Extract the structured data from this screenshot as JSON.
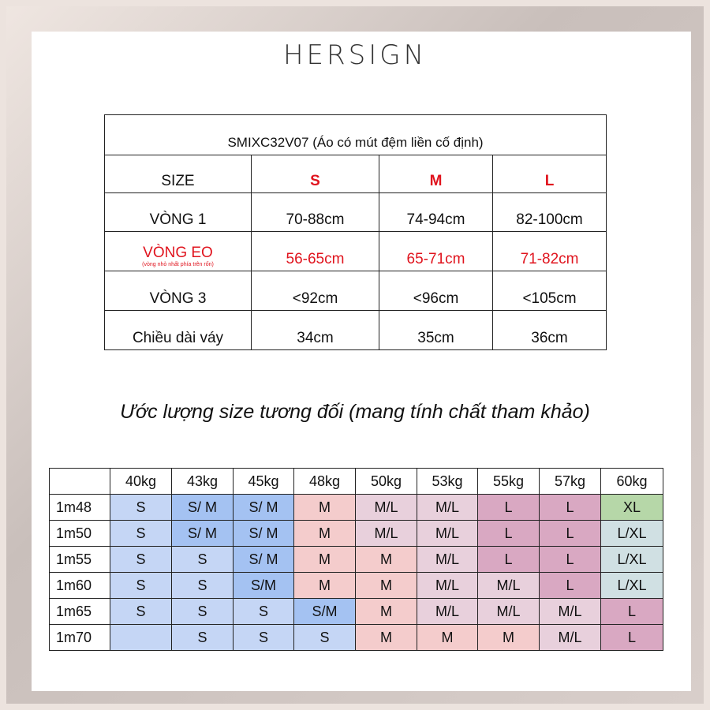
{
  "brand": "HERSIGN",
  "size_table": {
    "title": "SMIXC32V07 (Áo có mút đệm liền cố định)",
    "header": [
      "SIZE",
      "S",
      "M",
      "L"
    ],
    "rows": [
      {
        "label": "VÒNG 1",
        "values": [
          "70-88cm",
          "74-94cm",
          "82-100cm"
        ]
      },
      {
        "label": "VÒNG EO",
        "note": "(vòng nhỏ nhất phía trên rốn)",
        "values": [
          "56-65cm",
          "65-71cm",
          "71-82cm"
        ]
      },
      {
        "label": "VÒNG 3",
        "values": [
          "<92cm",
          "<96cm",
          "<105cm"
        ]
      },
      {
        "label": "Chiều dài váy",
        "values": [
          "34cm",
          "35cm",
          "36cm"
        ]
      }
    ]
  },
  "estimate_title": "Ước lượng size tương đối (mang tính chất tham khảo)",
  "estimate_table": {
    "weights": [
      "40kg",
      "43kg",
      "45kg",
      "48kg",
      "50kg",
      "53kg",
      "55kg",
      "57kg",
      "60kg"
    ],
    "rows": [
      {
        "height": "1m48",
        "cells": [
          "S",
          "S/ M",
          "S/ M",
          "M",
          "M/L",
          "M/L",
          "L",
          "L",
          "XL"
        ]
      },
      {
        "height": "1m50",
        "cells": [
          "S",
          "S/ M",
          "S/ M",
          "M",
          "M/L",
          "M/L",
          "L",
          "L",
          "L/XL"
        ]
      },
      {
        "height": "1m55",
        "cells": [
          "S",
          "S",
          "S/ M",
          "M",
          "M",
          "M/L",
          "L",
          "L",
          "L/XL"
        ]
      },
      {
        "height": "1m60",
        "cells": [
          "S",
          "S",
          "S/M",
          "M",
          "M",
          "M/L",
          "M/L",
          "L",
          "L/XL"
        ]
      },
      {
        "height": "1m65",
        "cells": [
          "S",
          "S",
          "S",
          "S/M",
          "M",
          "M/L",
          "M/L",
          "M/L",
          "L"
        ]
      },
      {
        "height": "1m70",
        "cells": [
          "",
          "S",
          "S",
          "S",
          "M",
          "M",
          "M",
          "M/L",
          "L"
        ]
      }
    ]
  },
  "colors": {
    "accent_red": "#e0141e",
    "blue_light": "#c5d6f5",
    "blue": "#a4c2f2",
    "peach": "#f4cccc",
    "pink": "#e8d0dc",
    "mauve": "#d9a8c2",
    "green": "#b6d7a8",
    "mint": "#d0e0e3"
  }
}
